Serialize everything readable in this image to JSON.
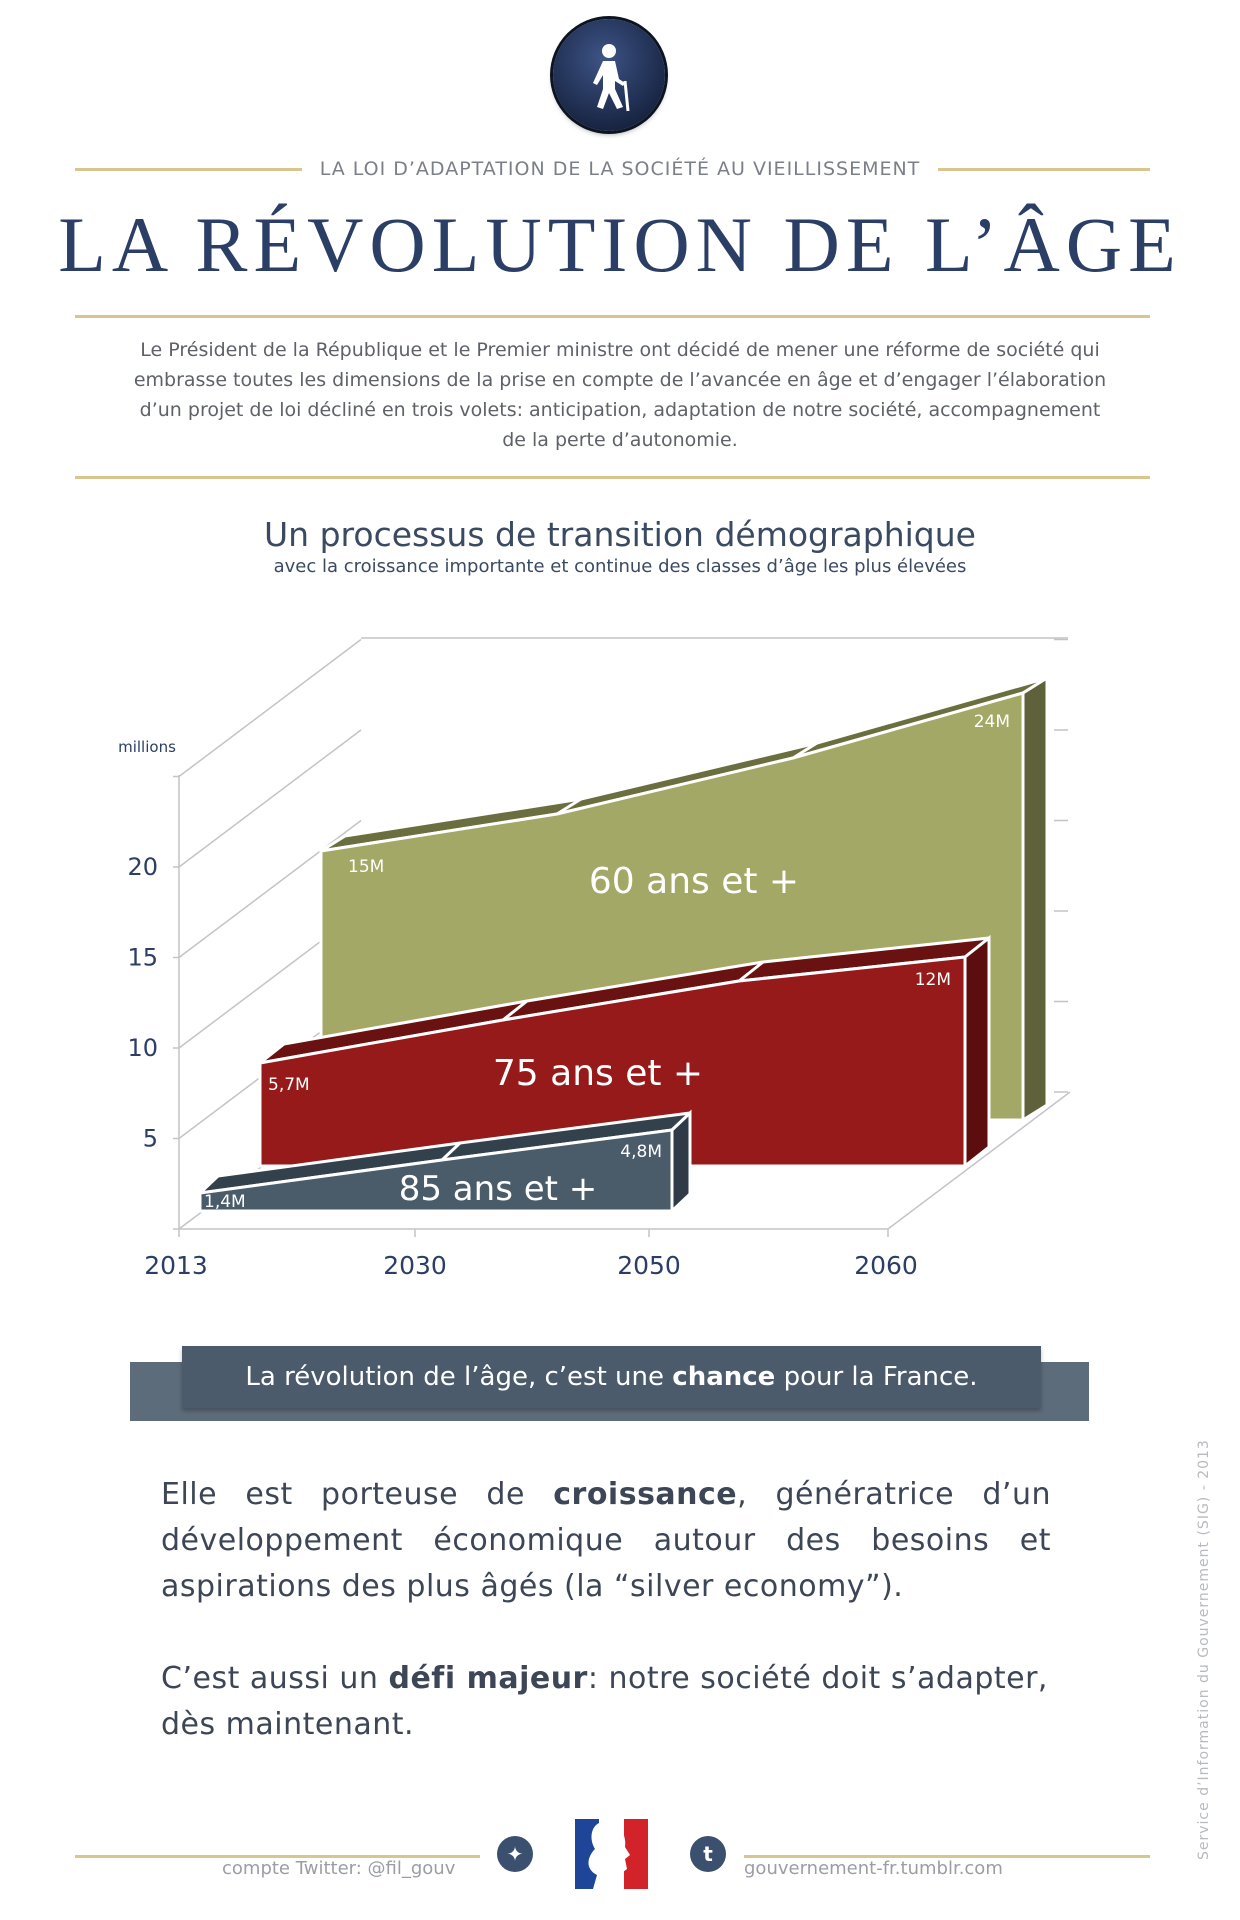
{
  "header": {
    "logo_icon": "elderly-person-with-cane-icon",
    "kicker": "LA LOI D’ADAPTATION DE LA SOCIÉTÉ AU VIEILLISSEMENT",
    "title": "LA RÉVOLUTION DE L’ÂGE",
    "intro": "Le Président de la République et le Premier ministre ont décidé de mener une réforme de société qui embrasse toutes les dimensions de la prise en compte de l’avancée en âge et d’engager l’élaboration d’un projet de loi décliné en trois volets: anticipation, adaptation de notre société, accompagnement de la perte d’autonomie."
  },
  "chart_data": {
    "type": "area",
    "title": "Un processus de transition démographique",
    "subtitle": "avec la croissance importante et continue des classes d’âge les plus élevées",
    "ylabel": "millions",
    "ylim": [
      0,
      25
    ],
    "yticks": [
      "5",
      "10",
      "15",
      "20"
    ],
    "categories": [
      "2013",
      "2030",
      "2050",
      "2060"
    ],
    "grid": true,
    "three_d": true,
    "series": [
      {
        "name": "60 ans et +",
        "start_label": "15M",
        "end_label": "24M",
        "start": 15,
        "end": 24,
        "color": "#a3a866"
      },
      {
        "name": "75 ans et +",
        "start_label": "5,7M",
        "end_label": "12M",
        "start": 5.7,
        "end": 12,
        "color": "#961a1a"
      },
      {
        "name": "85 ans et +",
        "start_label": "1,4M",
        "end_label": "4,8M",
        "start": 1.4,
        "end": 4.8,
        "color": "#4a5b6a"
      }
    ]
  },
  "banner": {
    "pre": "La révolution de l’âge, c’est une ",
    "bold": "chance",
    "post": " pour la France."
  },
  "body": {
    "p1_a": "Elle est porteuse de ",
    "p1_bold": "croissance",
    "p1_b": ", génératrice d’un développement économique autour des besoins et aspirations des plus âgés (la “silver economy”).",
    "p2_a": "C’est aussi un ",
    "p2_bold": "défi majeur",
    "p2_b": ": notre société doit s’adapter, dès maintenant."
  },
  "footer": {
    "twitter": "compte Twitter: @fil_gouv",
    "twitter_icon": "twitter-bird-icon",
    "tumblr": "gouvernement-fr.tumblr.com",
    "tumblr_icon": "tumblr-t-icon",
    "logo": "Marianne République Française",
    "side_credit": "Service d’Information du Gouvernement (SIG) - 2013"
  }
}
